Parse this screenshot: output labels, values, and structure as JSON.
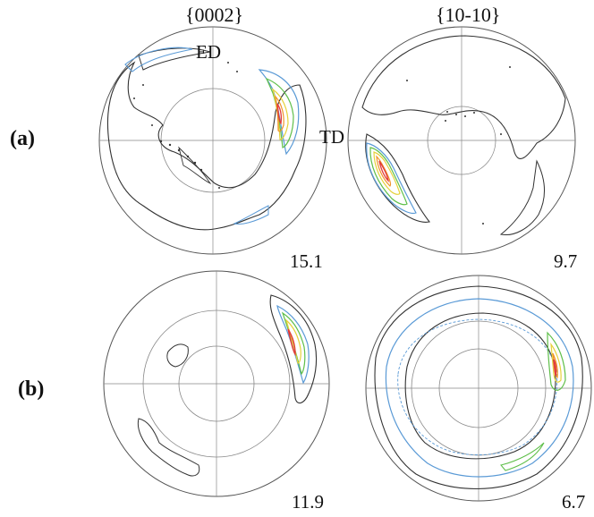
{
  "columns": [
    "{0002}",
    "{10-10}"
  ],
  "rows": [
    "(a)",
    "(b)"
  ],
  "axes": {
    "ed": "ED",
    "td": "TD"
  },
  "max_values": {
    "a_0002": "15.1",
    "a_1010": "9.7",
    "b_0002": "11.9",
    "b_1010": "6.7"
  },
  "contour_colors": {
    "outline": "#333333",
    "level_blue": "#5a9ad6",
    "level_green": "#5fbf4a",
    "level_yellow": "#e6d23a",
    "level_orange": "#f0942a",
    "level_red": "#e23a3a"
  }
}
